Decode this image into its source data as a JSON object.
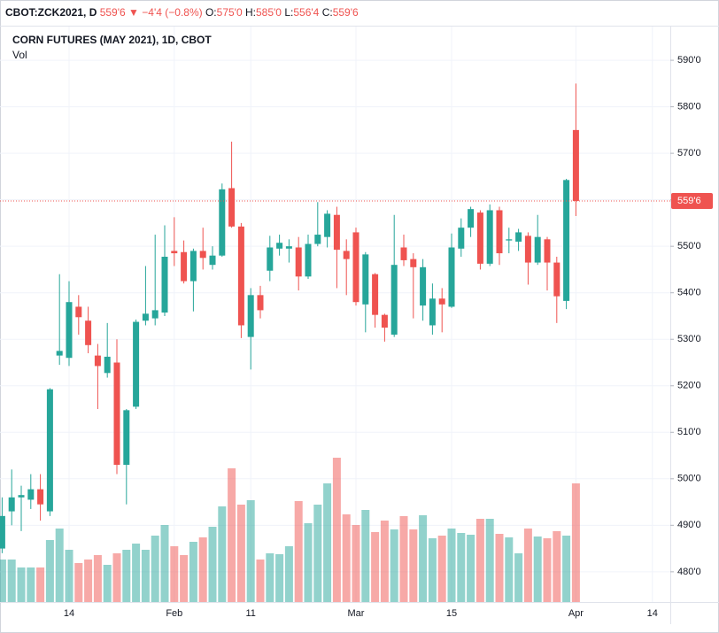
{
  "header": {
    "symbol": "CBOT:ZCK2021, D",
    "change": "−4'4 (−0.8%)",
    "ohlc": [
      {
        "key": "O:",
        "value": "575'0"
      },
      {
        "key": "H:",
        "value": "585'0"
      },
      {
        "key": "L:",
        "value": "556'4"
      },
      {
        "key": "C:",
        "value": "559'6"
      }
    ]
  },
  "chart_data": {
    "type": "candlestick",
    "title": "CORN FUTURES (MAY 2021), 1D, CBOT",
    "volume_label": "Vol",
    "categories": [
      null,
      null,
      null,
      null,
      null,
      null,
      null,
      "14",
      null,
      null,
      null,
      null,
      null,
      null,
      null,
      null,
      null,
      null,
      "Feb",
      null,
      null,
      null,
      null,
      null,
      null,
      null,
      "11",
      null,
      null,
      null,
      null,
      null,
      null,
      null,
      null,
      null,
      null,
      "Mar",
      null,
      null,
      null,
      null,
      null,
      null,
      null,
      null,
      null,
      "15",
      null,
      null,
      null,
      null,
      null,
      null,
      null,
      null,
      null,
      null,
      null,
      null,
      "Apr",
      null,
      null,
      null,
      null,
      null,
      null,
      null,
      "14"
    ],
    "open": [
      485,
      493,
      496,
      495.5,
      497.75,
      493,
      526.5,
      526,
      537,
      534,
      526.5,
      522.75,
      525,
      503,
      515.5,
      534,
      534.5,
      535.75,
      549,
      548.75,
      542.5,
      549,
      546,
      548,
      562.5,
      554.25,
      530.5,
      539.5,
      544.75,
      549.5,
      549.5,
      549.75,
      543.5,
      550.5,
      552,
      556.75,
      549,
      553,
      537.5,
      544,
      535.25,
      531,
      549.75,
      547.25,
      537.25,
      533,
      538.75,
      537,
      549.5,
      554,
      557.25,
      546.25,
      557.75,
      551.25,
      551,
      552.25,
      546.5,
      551.5,
      546.5,
      538.25,
      575,
      null,
      null,
      null,
      null,
      null,
      null,
      null,
      null
    ],
    "high": [
      496,
      502,
      498.5,
      501,
      501,
      519.5,
      544,
      542.5,
      539.5,
      537,
      529,
      533.5,
      530,
      515,
      534.25,
      545.75,
      552.5,
      554.5,
      556.25,
      551.25,
      549.5,
      554,
      550,
      563.5,
      572.5,
      555,
      541,
      541.5,
      552.25,
      552.5,
      551.5,
      552,
      552.5,
      559.5,
      557.75,
      558.5,
      551.5,
      554,
      548.75,
      544.25,
      535.5,
      556.75,
      552.5,
      548.5,
      547.25,
      542,
      541,
      552.75,
      556,
      558.5,
      557.75,
      559,
      558.5,
      554,
      553.75,
      553,
      556.75,
      552,
      547.75,
      564.5,
      585,
      null,
      null,
      null,
      null,
      null,
      null,
      null,
      null
    ],
    "low": [
      484,
      490,
      488.75,
      493.5,
      491,
      492,
      524.5,
      524.25,
      531,
      527,
      515,
      521.75,
      501,
      494.5,
      515,
      533,
      533,
      535,
      545.75,
      542,
      536,
      545,
      545,
      547.75,
      554,
      530.25,
      523.5,
      534.5,
      542.5,
      548,
      546.5,
      540.5,
      543,
      550,
      549.75,
      541,
      539.5,
      537.25,
      531.5,
      532.5,
      529.5,
      530.5,
      545.75,
      534.5,
      534,
      531,
      531.5,
      536.75,
      547.75,
      552,
      545,
      545.75,
      546,
      548.5,
      549,
      541.75,
      546,
      540.5,
      533.5,
      536.5,
      556.5,
      null,
      null,
      null,
      null,
      null,
      null,
      null,
      null
    ],
    "close": [
      492,
      496,
      496.5,
      497.75,
      494.5,
      519.25,
      527.5,
      538,
      534.75,
      528.75,
      524.25,
      526.25,
      503,
      514.75,
      533.75,
      535.5,
      536.25,
      547.75,
      548.5,
      542.5,
      549,
      547.5,
      548,
      562.25,
      554.25,
      533,
      539.5,
      536.25,
      549.75,
      550.75,
      550,
      543.5,
      550.5,
      552.5,
      557,
      549.25,
      547.25,
      538,
      548.25,
      535.25,
      532.5,
      546,
      547,
      545.5,
      545.5,
      538.75,
      537.5,
      549.75,
      554,
      558,
      546.25,
      557.75,
      548.5,
      551.5,
      553,
      546.5,
      552,
      546.5,
      539.25,
      564.25,
      559.75,
      null,
      null,
      null,
      null,
      null,
      null,
      null,
      null
    ],
    "volume": [
      48000,
      48000,
      39000,
      39000,
      39000,
      70000,
      83000,
      59000,
      44000,
      48000,
      53000,
      42000,
      55000,
      59000,
      66000,
      59000,
      75000,
      87000,
      63000,
      53000,
      68000,
      73000,
      85000,
      108000,
      151000,
      110000,
      115000,
      48000,
      55000,
      54000,
      63000,
      114000,
      89000,
      110000,
      134000,
      163000,
      99000,
      87000,
      104000,
      79000,
      92000,
      82000,
      97000,
      82000,
      98000,
      72000,
      75000,
      83000,
      78000,
      76000,
      94000,
      94000,
      77000,
      73000,
      55000,
      83000,
      74000,
      72000,
      80000,
      75000,
      134000,
      null,
      null,
      null,
      null,
      null,
      null,
      null,
      null
    ],
    "up_color": "#26a69a",
    "down_color": "#ef5350",
    "ylim": [
      473.5,
      597.25
    ],
    "yticks": [
      {
        "value": 480,
        "label": "480'0"
      },
      {
        "value": 490,
        "label": "490'0"
      },
      {
        "value": 500,
        "label": "500'0"
      },
      {
        "value": 510,
        "label": "510'0"
      },
      {
        "value": 520,
        "label": "520'0"
      },
      {
        "value": 530,
        "label": "530'0"
      },
      {
        "value": 540,
        "label": "540'0"
      },
      {
        "value": 550,
        "label": "550'0"
      },
      {
        "value": 560,
        "label": "560'0"
      },
      {
        "value": 570,
        "label": "570'0"
      },
      {
        "value": 580,
        "label": "580'0"
      },
      {
        "value": 590,
        "label": "590'0"
      }
    ],
    "last_price": {
      "value": 559.75,
      "label": "559'6"
    },
    "grid": true
  }
}
